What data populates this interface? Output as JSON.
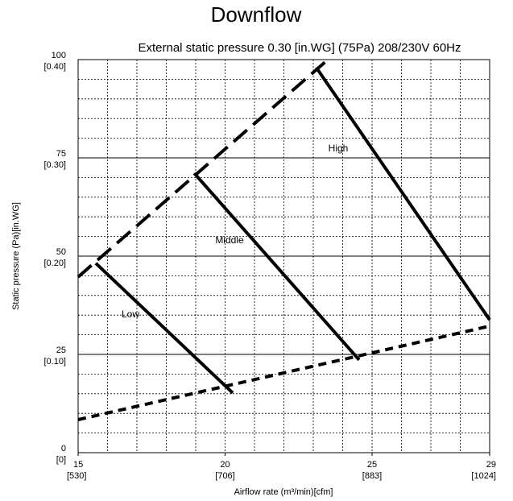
{
  "chart_data": {
    "type": "line",
    "title": "Downflow",
    "subtitle": "External static pressure 0.30 [in.WG] (75Pa)  208/230V 60Hz",
    "x_label": "Airflow rate (m³/min)[cfm]",
    "y_label": "Static pressure (Pa)[in.WG]",
    "xlim": [
      15,
      29
    ],
    "xticks": [
      15,
      20,
      25,
      29
    ],
    "xtick_sublabels": [
      "[530]",
      "[706]",
      "[883]",
      "[1024]"
    ],
    "ylim": [
      0,
      100
    ],
    "yticks": [
      0,
      25,
      50,
      75,
      100
    ],
    "ytick_sublabels": [
      "[0]",
      "[0.10]",
      "[0.20]",
      "[0.30]",
      "[0.40]"
    ],
    "grid": true,
    "minor_grid": {
      "x_step": 1,
      "y_step": 5
    },
    "series": [
      {
        "name": "High",
        "color": "#000000",
        "dash": "solid",
        "x": [
          23.1,
          29
        ],
        "values": [
          98,
          33.8
        ]
      },
      {
        "name": "Middle",
        "color": "#000000",
        "dash": "solid",
        "x": [
          18.95,
          24.56
        ],
        "values": [
          71.1,
          23.6
        ]
      },
      {
        "name": "Low",
        "color": "#000000",
        "dash": "solid",
        "x": [
          15.6,
          20.26
        ],
        "values": [
          48.2,
          15.2
        ]
      },
      {
        "color": "#000000",
        "dash": "long-dash",
        "x": [
          15,
          23.5
        ],
        "values": [
          44.7,
          100
        ]
      },
      {
        "color": "#000000",
        "dash": "short-dash",
        "x": [
          15,
          29
        ],
        "values": [
          8.4,
          32.2
        ]
      }
    ]
  }
}
